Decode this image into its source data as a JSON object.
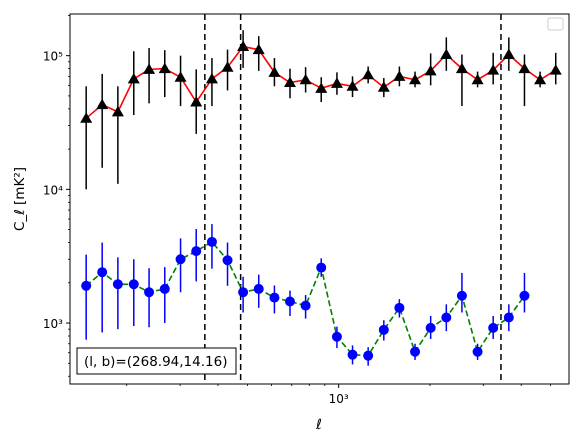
{
  "chart_data": {
    "type": "line",
    "xlabel": "ℓ",
    "ylabel": "C_ℓ [mK²]",
    "xscale": "log",
    "yscale": "log",
    "xlim": [
      130,
      5750
    ],
    "ylim": [
      350,
      205000
    ],
    "x_ticks": [
      {
        "value": 1000,
        "label": "10³"
      }
    ],
    "y_ticks": [
      {
        "value": 1000,
        "label": "10³"
      },
      {
        "value": 10000,
        "label": "10⁴"
      },
      {
        "value": 100000,
        "label": "10⁵"
      }
    ],
    "legend": {
      "entries": [],
      "placement": "top-right"
    },
    "annotation": "(l, b)=(268.94,14.16)",
    "vlines": [
      {
        "x": 362,
        "style": "dashed"
      },
      {
        "x": 475,
        "style": "dashed"
      },
      {
        "x": 3430,
        "style": "dashed"
      }
    ],
    "series": [
      {
        "color": "#ff0000",
        "marker": "triangle",
        "marker_color": "#000000",
        "line_style": "solid",
        "x": [
          147,
          166,
          187,
          211,
          237,
          267,
          301,
          339,
          382,
          430,
          484,
          545,
          614,
          691,
          778,
          876,
          987,
          1111,
          1251,
          1409,
          1586,
          1786,
          2011,
          2265,
          2550,
          2872,
          3233,
          3641,
          4100,
          4617,
          5199
        ],
        "y": [
          34000,
          43000,
          38000,
          67000,
          79000,
          80000,
          69000,
          45000,
          67000,
          82000,
          117000,
          111000,
          75000,
          63000,
          66000,
          57000,
          62000,
          59000,
          72000,
          58000,
          70000,
          66000,
          77000,
          102000,
          80000,
          66000,
          78000,
          102000,
          80000,
          66000,
          78000
        ],
        "err_low": [
          24000,
          28500,
          27000,
          31000,
          35000,
          31000,
          27000,
          19000,
          25000,
          27000,
          36000,
          34000,
          16000,
          15000,
          13000,
          12000,
          11000,
          10000,
          10000,
          9000,
          11000,
          8000,
          17000,
          25000,
          38000,
          8000,
          17000,
          25000,
          38000,
          8000,
          17000
        ],
        "err_high": [
          25000,
          30000,
          21000,
          41000,
          35000,
          30000,
          31000,
          34000,
          29000,
          29000,
          38000,
          29000,
          21000,
          17000,
          16000,
          12000,
          13000,
          11000,
          11000,
          10000,
          13000,
          10000,
          27000,
          35000,
          22000,
          10000,
          27000,
          35000,
          22000,
          10000,
          27000
        ]
      },
      {
        "color": "#008000",
        "marker": "circle",
        "marker_color": "#0000ff",
        "line_style": "dashed",
        "x": [
          147,
          166,
          187,
          211,
          237,
          267,
          301,
          339,
          382,
          430,
          484,
          545,
          614,
          691,
          778,
          876,
          987,
          1111,
          1251,
          1409,
          1586,
          1786,
          2011,
          2265,
          2550,
          2872,
          3233,
          3641,
          4100
        ],
        "y": [
          1900,
          2400,
          1950,
          1950,
          1700,
          1800,
          3000,
          3450,
          4050,
          2950,
          1700,
          1800,
          1550,
          1450,
          1350,
          2600,
          790,
          580,
          570,
          890,
          1300,
          610,
          920,
          1100,
          1600,
          610,
          920,
          1100,
          1600
        ],
        "err_low": [
          1150,
          1550,
          1050,
          1000,
          770,
          800,
          1300,
          1400,
          1500,
          1050,
          500,
          500,
          370,
          320,
          270,
          380,
          140,
          90,
          90,
          150,
          200,
          80,
          160,
          230,
          400,
          80,
          160,
          230,
          400
        ],
        "err_high": [
          1350,
          1600,
          1150,
          1050,
          870,
          820,
          1300,
          1600,
          1450,
          1050,
          520,
          500,
          360,
          300,
          270,
          450,
          150,
          100,
          90,
          160,
          210,
          90,
          210,
          280,
          770,
          90,
          210,
          280,
          770
        ]
      }
    ]
  }
}
